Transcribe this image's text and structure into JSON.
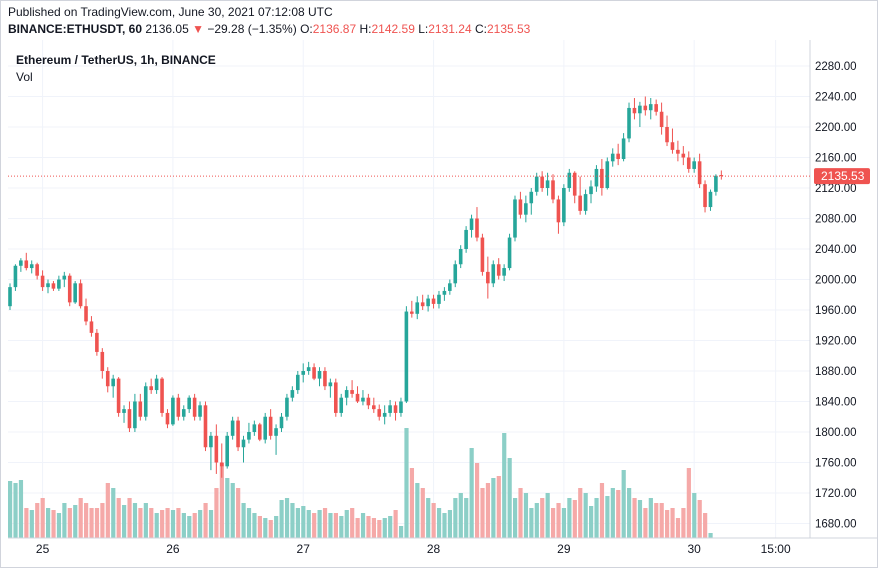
{
  "header": {
    "published": "Published on TradingView.com, June 30, 2021 07:12:08 UTC",
    "symbol": "BINANCE:ETHUSDT, 60",
    "last": "2136.05",
    "change_arrow": "▼",
    "change": "−29.28 (−1.35%)",
    "o_label": "O:",
    "o_value": "2136.87",
    "h_label": "H:",
    "h_value": "2142.59",
    "l_label": "L:",
    "l_value": "2131.24",
    "c_label": "C:",
    "c_value": "2135.53"
  },
  "legend": {
    "title": "Ethereum / TetherUS, 1h, BINANCE",
    "volume_label": "Vol"
  },
  "price_tag": "2135.53",
  "colors": {
    "up": "#26a69a",
    "down": "#ef5350",
    "vol_up": "#8ccfc7",
    "vol_down": "#f5a9a8",
    "grid": "#f0f3fa",
    "last_line": "#ef5350"
  },
  "chart_data": {
    "type": "candlestick",
    "interval": "1h",
    "ylim": [
      1660,
      2300
    ],
    "y_ticks": [
      "2280.00",
      "2240.00",
      "2200.00",
      "2160.00",
      "2120.00",
      "2080.00",
      "2040.00",
      "2000.00",
      "1960.00",
      "1920.00",
      "1880.00",
      "1840.00",
      "1800.00",
      "1760.00",
      "1720.00",
      "1680.00"
    ],
    "x_ticks": [
      {
        "label": "25",
        "index": 6
      },
      {
        "label": "26",
        "index": 30
      },
      {
        "label": "27",
        "index": 54
      },
      {
        "label": "28",
        "index": 78
      },
      {
        "label": "29",
        "index": 102
      },
      {
        "label": "30",
        "index": 126
      },
      {
        "label": "15:00",
        "index": 141
      }
    ],
    "last_price": 2135.53,
    "candles": [
      [
        1965,
        1995,
        1960,
        1990
      ],
      [
        1990,
        2020,
        1985,
        2018
      ],
      [
        2018,
        2028,
        2010,
        2025
      ],
      [
        2025,
        2035,
        2012,
        2015
      ],
      [
        2015,
        2025,
        2008,
        2020
      ],
      [
        2020,
        2022,
        2000,
        2005
      ],
      [
        2005,
        2012,
        1985,
        1990
      ],
      [
        1990,
        2000,
        1982,
        1995
      ],
      [
        1995,
        1998,
        1985,
        1988
      ],
      [
        1988,
        2005,
        1985,
        2000
      ],
      [
        2000,
        2010,
        1990,
        2005
      ],
      [
        2005,
        2008,
        1965,
        1970
      ],
      [
        1970,
        1998,
        1968,
        1995
      ],
      [
        1995,
        2000,
        1962,
        1965
      ],
      [
        1965,
        1975,
        1940,
        1945
      ],
      [
        1945,
        1952,
        1925,
        1930
      ],
      [
        1930,
        1935,
        1900,
        1905
      ],
      [
        1905,
        1910,
        1870,
        1880
      ],
      [
        1880,
        1885,
        1852,
        1860
      ],
      [
        1860,
        1875,
        1845,
        1870
      ],
      [
        1870,
        1872,
        1820,
        1825
      ],
      [
        1825,
        1835,
        1812,
        1830
      ],
      [
        1830,
        1840,
        1800,
        1805
      ],
      [
        1805,
        1850,
        1800,
        1840
      ],
      [
        1840,
        1850,
        1815,
        1820
      ],
      [
        1820,
        1865,
        1815,
        1860
      ],
      [
        1860,
        1870,
        1850,
        1855
      ],
      [
        1855,
        1875,
        1850,
        1870
      ],
      [
        1870,
        1872,
        1820,
        1825
      ],
      [
        1825,
        1830,
        1805,
        1810
      ],
      [
        1810,
        1848,
        1808,
        1845
      ],
      [
        1845,
        1850,
        1815,
        1820
      ],
      [
        1820,
        1835,
        1815,
        1830
      ],
      [
        1830,
        1848,
        1825,
        1845
      ],
      [
        1845,
        1850,
        1815,
        1820
      ],
      [
        1820,
        1840,
        1815,
        1835
      ],
      [
        1835,
        1840,
        1775,
        1780
      ],
      [
        1780,
        1800,
        1750,
        1795
      ],
      [
        1795,
        1810,
        1745,
        1760
      ],
      [
        1760,
        1785,
        1740,
        1755
      ],
      [
        1755,
        1800,
        1752,
        1795
      ],
      [
        1795,
        1820,
        1790,
        1815
      ],
      [
        1815,
        1820,
        1775,
        1780
      ],
      [
        1780,
        1795,
        1760,
        1790
      ],
      [
        1790,
        1812,
        1785,
        1800
      ],
      [
        1800,
        1815,
        1795,
        1810
      ],
      [
        1810,
        1812,
        1788,
        1790
      ],
      [
        1790,
        1825,
        1785,
        1820
      ],
      [
        1820,
        1830,
        1790,
        1795
      ],
      [
        1795,
        1810,
        1770,
        1805
      ],
      [
        1805,
        1825,
        1800,
        1820
      ],
      [
        1820,
        1850,
        1815,
        1845
      ],
      [
        1845,
        1860,
        1840,
        1855
      ],
      [
        1855,
        1880,
        1850,
        1875
      ],
      [
        1875,
        1890,
        1865,
        1880
      ],
      [
        1880,
        1892,
        1875,
        1885
      ],
      [
        1885,
        1890,
        1868,
        1870
      ],
      [
        1870,
        1885,
        1860,
        1880
      ],
      [
        1880,
        1885,
        1855,
        1860
      ],
      [
        1860,
        1870,
        1845,
        1865
      ],
      [
        1865,
        1870,
        1820,
        1825
      ],
      [
        1825,
        1850,
        1820,
        1845
      ],
      [
        1845,
        1860,
        1835,
        1855
      ],
      [
        1855,
        1868,
        1845,
        1850
      ],
      [
        1850,
        1860,
        1838,
        1840
      ],
      [
        1840,
        1855,
        1835,
        1845
      ],
      [
        1845,
        1850,
        1830,
        1835
      ],
      [
        1835,
        1845,
        1825,
        1830
      ],
      [
        1830,
        1836,
        1815,
        1820
      ],
      [
        1820,
        1835,
        1810,
        1825
      ],
      [
        1825,
        1842,
        1820,
        1835
      ],
      [
        1835,
        1840,
        1815,
        1825
      ],
      [
        1825,
        1845,
        1820,
        1840
      ],
      [
        1840,
        1965,
        1838,
        1958
      ],
      [
        1958,
        1972,
        1950,
        1955
      ],
      [
        1955,
        1978,
        1948,
        1970
      ],
      [
        1970,
        1980,
        1960,
        1965
      ],
      [
        1965,
        1980,
        1958,
        1975
      ],
      [
        1975,
        1980,
        1962,
        1968
      ],
      [
        1968,
        1985,
        1962,
        1980
      ],
      [
        1980,
        1990,
        1972,
        1985
      ],
      [
        1985,
        2000,
        1980,
        1995
      ],
      [
        1995,
        2025,
        1990,
        2020
      ],
      [
        2020,
        2045,
        2015,
        2040
      ],
      [
        2040,
        2070,
        2035,
        2065
      ],
      [
        2065,
        2085,
        2055,
        2080
      ],
      [
        2080,
        2095,
        2050,
        2055
      ],
      [
        2055,
        2060,
        2005,
        2010
      ],
      [
        2010,
        2030,
        1975,
        1995
      ],
      [
        1995,
        2025,
        1990,
        2020
      ],
      [
        2020,
        2028,
        2000,
        2005
      ],
      [
        2005,
        2020,
        1998,
        2015
      ],
      [
        2015,
        2060,
        2012,
        2055
      ],
      [
        2055,
        2110,
        2050,
        2105
      ],
      [
        2105,
        2115,
        2080,
        2085
      ],
      [
        2085,
        2110,
        2075,
        2100
      ],
      [
        2100,
        2120,
        2085,
        2115
      ],
      [
        2115,
        2140,
        2110,
        2135
      ],
      [
        2135,
        2142,
        2115,
        2120
      ],
      [
        2120,
        2140,
        2110,
        2130
      ],
      [
        2130,
        2138,
        2100,
        2105
      ],
      [
        2105,
        2110,
        2060,
        2075
      ],
      [
        2075,
        2125,
        2070,
        2120
      ],
      [
        2120,
        2145,
        2115,
        2140
      ],
      [
        2140,
        2142,
        2100,
        2110
      ],
      [
        2110,
        2135,
        2085,
        2090
      ],
      [
        2090,
        2118,
        2085,
        2112
      ],
      [
        2112,
        2130,
        2100,
        2122
      ],
      [
        2122,
        2150,
        2115,
        2145
      ],
      [
        2145,
        2158,
        2110,
        2120
      ],
      [
        2120,
        2160,
        2118,
        2155
      ],
      [
        2155,
        2172,
        2148,
        2165
      ],
      [
        2165,
        2178,
        2150,
        2158
      ],
      [
        2158,
        2192,
        2155,
        2185
      ],
      [
        2185,
        2232,
        2180,
        2225
      ],
      [
        2225,
        2238,
        2210,
        2218
      ],
      [
        2218,
        2233,
        2200,
        2228
      ],
      [
        2228,
        2240,
        2215,
        2222
      ],
      [
        2222,
        2238,
        2210,
        2230
      ],
      [
        2230,
        2236,
        2215,
        2220
      ],
      [
        2220,
        2232,
        2190,
        2200
      ],
      [
        2200,
        2215,
        2175,
        2180
      ],
      [
        2180,
        2198,
        2165,
        2170
      ],
      [
        2170,
        2182,
        2155,
        2165
      ],
      [
        2165,
        2175,
        2150,
        2160
      ],
      [
        2160,
        2168,
        2140,
        2145
      ],
      [
        2145,
        2160,
        2140,
        2155
      ],
      [
        2155,
        2165,
        2120,
        2125
      ],
      [
        2125,
        2130,
        2088,
        2095
      ],
      [
        2095,
        2118,
        2090,
        2115
      ],
      [
        2115,
        2138,
        2110,
        2136
      ],
      [
        2137,
        2143,
        2131,
        2136
      ]
    ],
    "volume_heights": [
      57,
      55,
      58,
      30,
      28,
      35,
      40,
      30,
      28,
      25,
      35,
      30,
      33,
      40,
      35,
      30,
      30,
      35,
      55,
      50,
      40,
      33,
      40,
      35,
      30,
      35,
      30,
      25,
      28,
      30,
      28,
      30,
      25,
      22,
      25,
      28,
      35,
      28,
      50,
      75,
      60,
      55,
      50,
      35,
      30,
      25,
      22,
      20,
      18,
      22,
      38,
      40,
      35,
      30,
      32,
      28,
      25,
      28,
      30,
      25,
      25,
      22,
      28,
      30,
      20,
      25,
      22,
      20,
      18,
      20,
      22,
      28,
      12,
      110,
      70,
      55,
      50,
      40,
      35,
      30,
      25,
      28,
      40,
      45,
      40,
      90,
      75,
      50,
      55,
      60,
      62,
      105,
      80,
      40,
      50,
      45,
      30,
      35,
      40,
      45,
      30,
      35,
      30,
      40,
      38,
      50,
      45,
      32,
      40,
      55,
      42,
      50,
      48,
      68,
      50,
      40,
      38,
      30,
      40,
      35,
      35,
      28,
      30,
      20,
      30,
      70,
      45,
      38,
      25,
      5
    ]
  }
}
